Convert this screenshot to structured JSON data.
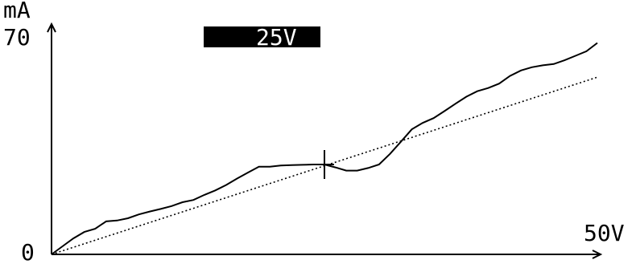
{
  "chart_data": {
    "type": "line",
    "y_unit": "mA",
    "y_max_label": "70",
    "y_min_label": "0",
    "x_max_label": "50V",
    "cursor_readout": "25V",
    "xlim": [
      0,
      50
    ],
    "ylim": [
      0,
      70
    ],
    "cursor_x": 25,
    "series": [
      {
        "style": "solid",
        "x": [
          0,
          1,
          2,
          3,
          4,
          5,
          6,
          7,
          8,
          9,
          10,
          11,
          12,
          13,
          14,
          15,
          16,
          17,
          18,
          19,
          20,
          21,
          22,
          23,
          24,
          25,
          26,
          27,
          28,
          29,
          30,
          31,
          32,
          33,
          34,
          35,
          36,
          37,
          38,
          39,
          40,
          41,
          42,
          43,
          44,
          45,
          46,
          47,
          48,
          49,
          50
        ],
        "y": [
          0,
          2.5,
          5.0,
          7.0,
          8.0,
          10.3,
          10.6,
          11.3,
          12.5,
          13.4,
          14.2,
          15.1,
          16.3,
          17.0,
          18.6,
          20.0,
          21.7,
          23.7,
          25.6,
          27.4,
          27.4,
          27.8,
          27.9,
          28.0,
          28.1,
          28.1,
          27.2,
          26.2,
          26.2,
          27.0,
          28.1,
          31.4,
          35.2,
          39.1,
          41.1,
          42.6,
          44.8,
          47.1,
          49.3,
          51.0,
          52.0,
          53.4,
          55.8,
          57.5,
          58.5,
          59.1,
          59.5,
          60.7,
          62.1,
          63.5,
          66.1
        ]
      },
      {
        "style": "dotted",
        "x": [
          0,
          50
        ],
        "y": [
          0,
          55.4
        ]
      }
    ]
  }
}
